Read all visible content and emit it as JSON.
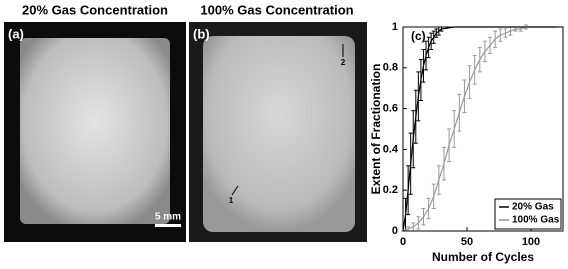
{
  "panels": [
    {
      "title": "20% Gas Concentration",
      "label": "(a)",
      "scale_bar": "5 mm"
    },
    {
      "title": "100% Gas Concentration",
      "label": "(b)",
      "markers": [
        "1",
        "2"
      ]
    }
  ],
  "chart_data": {
    "type": "line",
    "panel_label": "(c)",
    "x_label": "Number of Cycles",
    "y_label": "Extent of Fractionation",
    "xlim": [
      0,
      125
    ],
    "xticks": [
      0,
      50,
      100
    ],
    "ylim": [
      0,
      1
    ],
    "yticks": [
      0,
      0.2,
      0.4,
      0.6,
      0.8,
      1
    ],
    "legend": "lower right",
    "series": [
      {
        "name": "20% Gas",
        "color": "#000000",
        "x": [
          0,
          2,
          4,
          6,
          8,
          10,
          12,
          14,
          16,
          18,
          20,
          22,
          24,
          26,
          28,
          30,
          40,
          50,
          60,
          70,
          80,
          90,
          100,
          110,
          120
        ],
        "values": [
          0,
          0.08,
          0.2,
          0.33,
          0.45,
          0.56,
          0.66,
          0.74,
          0.81,
          0.86,
          0.9,
          0.93,
          0.95,
          0.97,
          0.98,
          0.99,
          1,
          1,
          1,
          1,
          1,
          1,
          1,
          1,
          1
        ],
        "errors": [
          0,
          0.08,
          0.12,
          0.15,
          0.14,
          0.13,
          0.12,
          0.1,
          0.08,
          0.07,
          0.05,
          0.04,
          0.03,
          0.02,
          0.02,
          0.01,
          0,
          0,
          0,
          0,
          0,
          0,
          0,
          0,
          0
        ]
      },
      {
        "name": "100% Gas",
        "color": "#999999",
        "x": [
          0,
          4,
          8,
          12,
          16,
          20,
          24,
          28,
          32,
          36,
          40,
          44,
          48,
          52,
          56,
          60,
          64,
          68,
          72,
          76,
          80,
          84,
          88,
          92,
          96,
          100,
          104,
          108,
          112,
          116,
          120,
          124
        ],
        "values": [
          0,
          0.01,
          0.02,
          0.04,
          0.07,
          0.11,
          0.17,
          0.25,
          0.33,
          0.42,
          0.5,
          0.58,
          0.66,
          0.73,
          0.79,
          0.84,
          0.88,
          0.91,
          0.94,
          0.96,
          0.97,
          0.98,
          0.99,
          0.99,
          1,
          1,
          1,
          1,
          1,
          1,
          1,
          1
        ],
        "errors": [
          0,
          0.01,
          0.02,
          0.03,
          0.04,
          0.05,
          0.06,
          0.07,
          0.08,
          0.08,
          0.09,
          0.09,
          0.08,
          0.08,
          0.07,
          0.06,
          0.05,
          0.04,
          0.04,
          0.03,
          0.02,
          0.02,
          0.01,
          0.01,
          0.01,
          0,
          0,
          0,
          0,
          0,
          0,
          0
        ]
      }
    ]
  }
}
